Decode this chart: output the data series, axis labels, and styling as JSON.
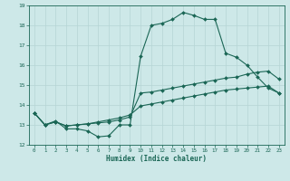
{
  "xlabel": "Humidex (Indice chaleur)",
  "bg_color": "#cde8e8",
  "grid_color": "#b5d5d5",
  "line_color": "#1a6655",
  "xlim": [
    -0.5,
    23.5
  ],
  "ylim": [
    12,
    19
  ],
  "yticks": [
    12,
    13,
    14,
    15,
    16,
    17,
    18,
    19
  ],
  "xticks": [
    0,
    1,
    2,
    3,
    4,
    5,
    6,
    7,
    8,
    9,
    10,
    11,
    12,
    13,
    14,
    15,
    16,
    17,
    18,
    19,
    20,
    21,
    22,
    23
  ],
  "line1_x": [
    0,
    1,
    2,
    3,
    4,
    5,
    6,
    7,
    8,
    9,
    10,
    11,
    12,
    13,
    14,
    15,
    16,
    17,
    18,
    19,
    20,
    21,
    22,
    23
  ],
  "line1_y": [
    13.6,
    13.0,
    13.2,
    12.8,
    12.8,
    12.7,
    12.4,
    12.45,
    13.0,
    13.0,
    16.45,
    18.0,
    18.1,
    18.3,
    18.65,
    18.5,
    18.3,
    18.3,
    16.6,
    16.4,
    16.0,
    15.4,
    14.85,
    14.6
  ],
  "line2_x": [
    0,
    1,
    2,
    3,
    4,
    5,
    6,
    7,
    8,
    9,
    10,
    11,
    12,
    13,
    14,
    15,
    16,
    17,
    18,
    19,
    20,
    21,
    22,
    23
  ],
  "line2_y": [
    13.6,
    13.0,
    13.15,
    12.95,
    13.0,
    13.05,
    13.1,
    13.15,
    13.25,
    13.4,
    14.6,
    14.65,
    14.75,
    14.85,
    14.95,
    15.05,
    15.15,
    15.25,
    15.35,
    15.4,
    15.55,
    15.65,
    15.7,
    15.3
  ],
  "line3_x": [
    0,
    1,
    2,
    3,
    4,
    5,
    6,
    7,
    8,
    9,
    10,
    11,
    12,
    13,
    14,
    15,
    16,
    17,
    18,
    19,
    20,
    21,
    22,
    23
  ],
  "line3_y": [
    13.6,
    13.0,
    13.15,
    12.95,
    13.0,
    13.05,
    13.15,
    13.25,
    13.35,
    13.5,
    13.95,
    14.05,
    14.15,
    14.25,
    14.35,
    14.45,
    14.55,
    14.65,
    14.75,
    14.8,
    14.85,
    14.9,
    14.95,
    14.6
  ]
}
